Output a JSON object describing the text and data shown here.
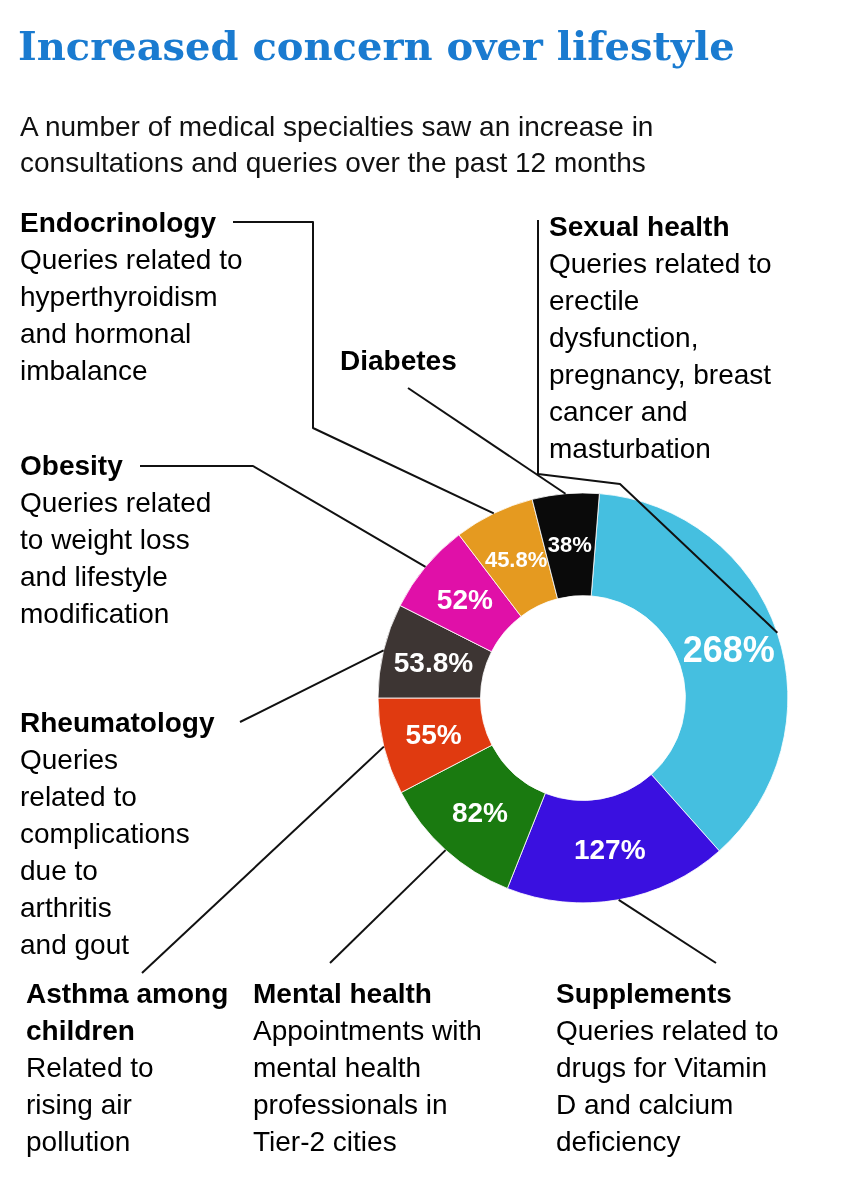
{
  "chart_data": {
    "type": "donut",
    "title": "Increased concern over lifestyle",
    "subtitle": "A number of medical specialties saw an increase in consultations and queries over the past 12 months",
    "categories": [
      "Sexual health",
      "Supplements",
      "Mental health",
      "Asthma among children",
      "Rheumatology",
      "Obesity",
      "Endocrinology",
      "Diabetes"
    ],
    "values": [
      268,
      127,
      82,
      55,
      53.8,
      52,
      45.8,
      38
    ],
    "value_labels": [
      "268%",
      "127%",
      "82%",
      "55%",
      "53.8%",
      "52%",
      "45.8%",
      "38%"
    ],
    "colors": [
      "#45bfe0",
      "#3a10e0",
      "#1a7a10",
      "#e03a10",
      "#3d3533",
      "#e010a8",
      "#e59a20",
      "#0a0a0a"
    ],
    "annotations": [
      "Queries related to erectile dysfunction, pregnancy, breast cancer and masturbation",
      "Queries related to drugs for Vitamin D and calcium deficiency",
      "Appointments with mental health professionals in Tier-2 cities",
      "Related to rising air pollution",
      "Queries related to complications due to arthritis  and gout",
      "Queries related to weight loss and lifestyle modification",
      "Queries related to hyperthyroidism and hormonal imbalance"
    ]
  }
}
